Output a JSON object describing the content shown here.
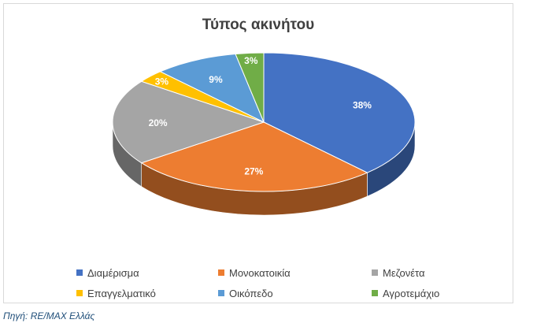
{
  "chart_data": {
    "type": "pie",
    "title": "Τύπος ακινήτου",
    "categories": [
      "Διαμέρισμα",
      "Μονοκατοικία",
      "Μεζονέτα",
      "Επαγγελματικό",
      "Οικόπεδο",
      "Αγροτεμάχιο"
    ],
    "values": [
      38,
      27,
      20,
      3,
      9,
      3
    ],
    "labels": [
      "38%",
      "27%",
      "20%",
      "3%",
      "9%",
      "3%"
    ],
    "colors": [
      "#4472c4",
      "#ed7d31",
      "#a5a5a5",
      "#ffc000",
      "#5b9bd5",
      "#70ad47"
    ],
    "legend": "bottom",
    "style": "3d"
  },
  "source": "Πηγή: RE/MAX Ελλάς"
}
